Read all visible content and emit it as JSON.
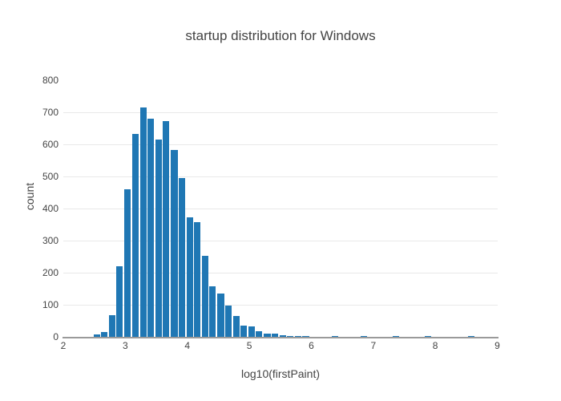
{
  "chart_data": {
    "type": "bar",
    "variant": "histogram",
    "title": "startup distribution for Windows",
    "xlabel": "log10(firstPaint)",
    "ylabel": "count",
    "xlim": [
      2,
      9
    ],
    "ylim": [
      0,
      850
    ],
    "xticks": [
      2,
      3,
      4,
      5,
      6,
      7,
      8,
      9
    ],
    "yticks": [
      0,
      100,
      200,
      300,
      400,
      500,
      600,
      700,
      800
    ],
    "bin_width": 0.1255,
    "bar_color": "#1f77b4",
    "grid_color": "#e9e9e9",
    "axis_line_color": "#9a9a9a",
    "text_color": "#444444",
    "legend": "none",
    "grid": "horizontal-only",
    "bins": [
      {
        "x": 2.54,
        "count": 8
      },
      {
        "x": 2.66,
        "count": 15
      },
      {
        "x": 2.79,
        "count": 67
      },
      {
        "x": 2.91,
        "count": 220
      },
      {
        "x": 3.04,
        "count": 460
      },
      {
        "x": 3.16,
        "count": 633
      },
      {
        "x": 3.29,
        "count": 715
      },
      {
        "x": 3.41,
        "count": 680
      },
      {
        "x": 3.54,
        "count": 615
      },
      {
        "x": 3.66,
        "count": 672
      },
      {
        "x": 3.79,
        "count": 583
      },
      {
        "x": 3.91,
        "count": 496
      },
      {
        "x": 4.04,
        "count": 372
      },
      {
        "x": 4.16,
        "count": 357
      },
      {
        "x": 4.29,
        "count": 252
      },
      {
        "x": 4.41,
        "count": 158
      },
      {
        "x": 4.54,
        "count": 135
      },
      {
        "x": 4.66,
        "count": 98
      },
      {
        "x": 4.79,
        "count": 65
      },
      {
        "x": 4.91,
        "count": 36
      },
      {
        "x": 5.04,
        "count": 33
      },
      {
        "x": 5.16,
        "count": 17
      },
      {
        "x": 5.29,
        "count": 11
      },
      {
        "x": 5.41,
        "count": 11
      },
      {
        "x": 5.54,
        "count": 6
      },
      {
        "x": 5.66,
        "count": 3
      },
      {
        "x": 5.79,
        "count": 2
      },
      {
        "x": 5.91,
        "count": 2
      },
      {
        "x": 6.38,
        "count": 2
      },
      {
        "x": 6.85,
        "count": 2
      },
      {
        "x": 7.37,
        "count": 2
      },
      {
        "x": 7.88,
        "count": 2
      },
      {
        "x": 8.58,
        "count": 1
      }
    ]
  }
}
